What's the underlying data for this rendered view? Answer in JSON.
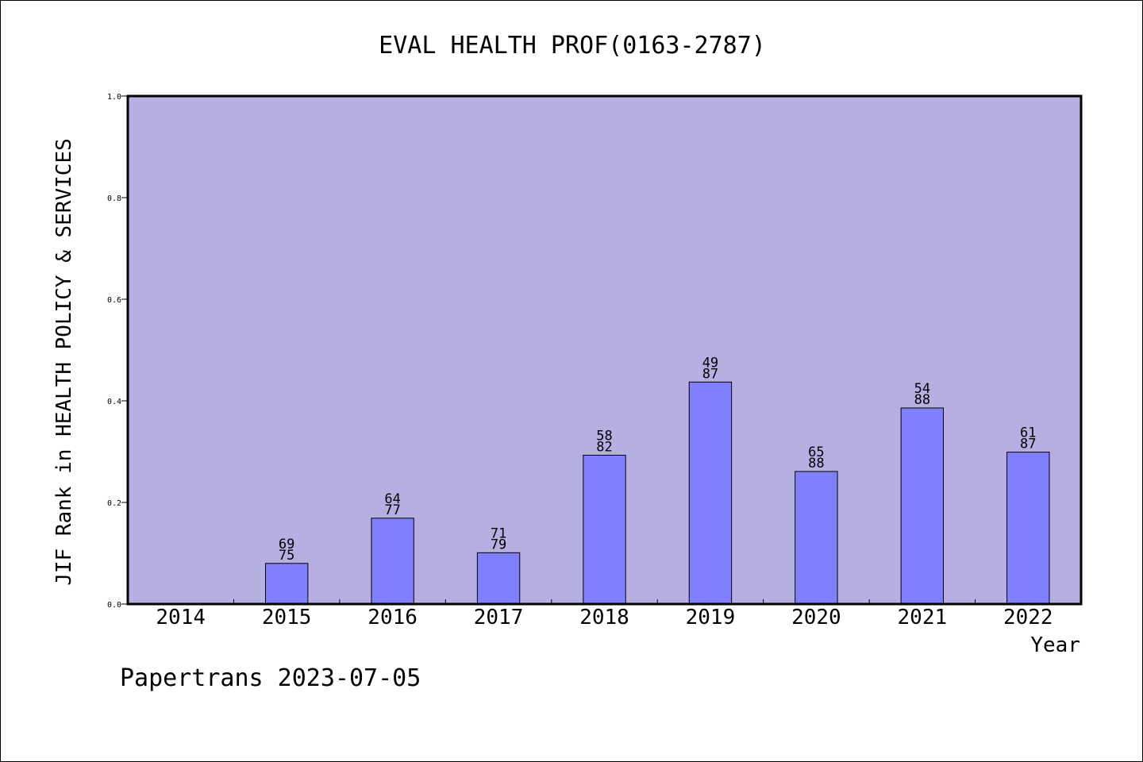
{
  "footer": {
    "text": "Papertrans 2023-07-05"
  },
  "colors": {
    "plot_background": "#b6b0e2",
    "bar_fill": "#8080ff",
    "bar_stroke": "#000000"
  },
  "chart_data": {
    "type": "bar",
    "title": "EVAL HEALTH PROF(0163-2787)",
    "xlabel": "Year",
    "ylabel": "JIF Rank in HEALTH POLICY & SERVICES",
    "ylim": [
      0,
      1.0
    ],
    "yticks": [
      "0.0",
      "0.2",
      "0.4",
      "0.6",
      "0.8",
      "1.0"
    ],
    "categories": [
      "2014",
      "2015",
      "2016",
      "2017",
      "2018",
      "2019",
      "2020",
      "2021",
      "2022"
    ],
    "values": [
      null,
      0.08,
      0.169,
      0.101,
      0.293,
      0.437,
      0.261,
      0.386,
      0.299
    ],
    "labels": [
      null,
      [
        "69",
        "75"
      ],
      [
        "64",
        "77"
      ],
      [
        "71",
        "79"
      ],
      [
        "58",
        "82"
      ],
      [
        "49",
        "87"
      ],
      [
        "65",
        "88"
      ],
      [
        "54",
        "88"
      ],
      [
        "61",
        "87"
      ]
    ],
    "grid": false,
    "legend": "none"
  }
}
